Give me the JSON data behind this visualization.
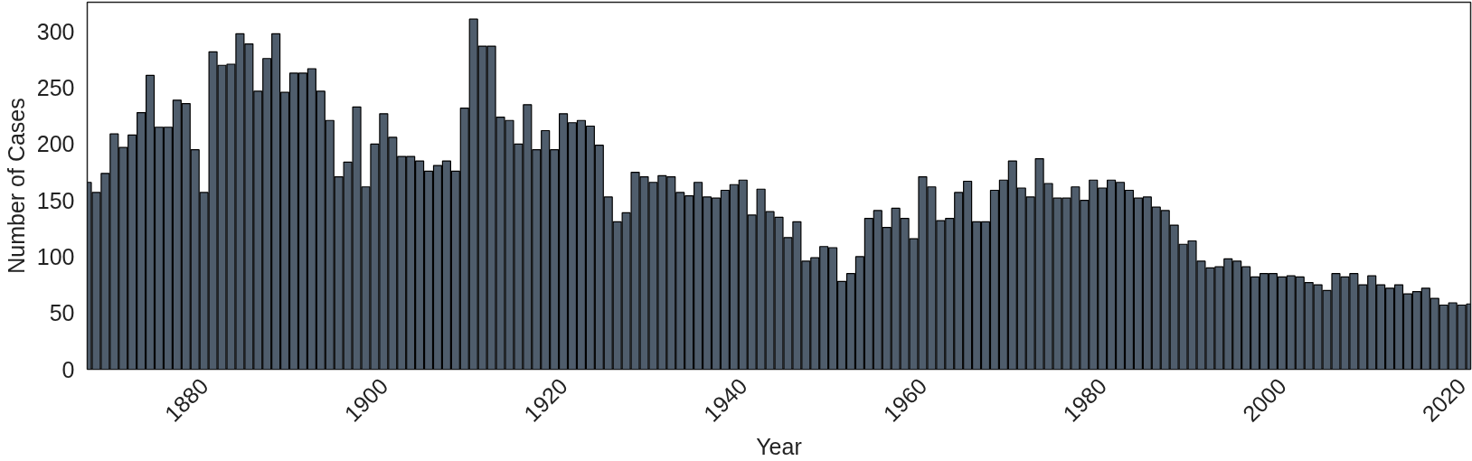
{
  "chart_data": {
    "type": "bar",
    "xlabel": "Year",
    "ylabel": "Number of Cases",
    "x": [
      1867,
      1868,
      1869,
      1870,
      1871,
      1872,
      1873,
      1874,
      1875,
      1876,
      1877,
      1878,
      1879,
      1880,
      1881,
      1882,
      1883,
      1884,
      1885,
      1886,
      1887,
      1888,
      1889,
      1890,
      1891,
      1892,
      1893,
      1894,
      1895,
      1896,
      1897,
      1898,
      1899,
      1900,
      1901,
      1902,
      1903,
      1904,
      1905,
      1906,
      1907,
      1908,
      1909,
      1910,
      1911,
      1912,
      1913,
      1914,
      1915,
      1916,
      1917,
      1918,
      1919,
      1920,
      1921,
      1922,
      1923,
      1924,
      1925,
      1926,
      1927,
      1928,
      1929,
      1930,
      1931,
      1932,
      1933,
      1934,
      1935,
      1936,
      1937,
      1938,
      1939,
      1940,
      1941,
      1942,
      1943,
      1944,
      1945,
      1946,
      1947,
      1948,
      1949,
      1950,
      1951,
      1952,
      1953,
      1954,
      1955,
      1956,
      1957,
      1958,
      1959,
      1960,
      1961,
      1962,
      1963,
      1964,
      1965,
      1966,
      1967,
      1968,
      1969,
      1970,
      1971,
      1972,
      1973,
      1974,
      1975,
      1976,
      1977,
      1978,
      1979,
      1980,
      1981,
      1982,
      1983,
      1984,
      1985,
      1986,
      1987,
      1988,
      1989,
      1990,
      1991,
      1992,
      1993,
      1994,
      1995,
      1996,
      1997,
      1998,
      1999,
      2000,
      2001,
      2002,
      2003,
      2004,
      2005,
      2006,
      2007,
      2008,
      2009,
      2010,
      2011,
      2012,
      2013,
      2014,
      2015,
      2016,
      2017,
      2018,
      2019,
      2020,
      2021
    ],
    "values": [
      166,
      157,
      174,
      209,
      197,
      208,
      228,
      261,
      215,
      215,
      239,
      236,
      195,
      157,
      282,
      270,
      271,
      298,
      289,
      247,
      276,
      298,
      246,
      263,
      263,
      267,
      247,
      221,
      171,
      184,
      233,
      162,
      200,
      227,
      206,
      189,
      189,
      185,
      176,
      181,
      185,
      176,
      232,
      311,
      287,
      287,
      224,
      221,
      200,
      235,
      195,
      212,
      195,
      227,
      219,
      221,
      216,
      199,
      153,
      131,
      139,
      175,
      171,
      166,
      172,
      171,
      157,
      154,
      166,
      153,
      152,
      159,
      164,
      168,
      137,
      160,
      140,
      135,
      117,
      131,
      96,
      99,
      109,
      108,
      78,
      85,
      100,
      134,
      141,
      126,
      143,
      134,
      116,
      171,
      162,
      132,
      134,
      157,
      167,
      131,
      131,
      159,
      168,
      185,
      161,
      153,
      187,
      165,
      152,
      152,
      162,
      150,
      168,
      161,
      168,
      166,
      159,
      152,
      153,
      144,
      141,
      128,
      111,
      114,
      96,
      90,
      91,
      98,
      96,
      91,
      82,
      85,
      85,
      82,
      83,
      82,
      77,
      75,
      70,
      85,
      82,
      85,
      75,
      83,
      75,
      72,
      75,
      67,
      69,
      72,
      63,
      57,
      59,
      57,
      58
    ],
    "color": "#4f5d6c",
    "xlim": [
      1867,
      2021
    ],
    "xticks": [
      1880,
      1900,
      1920,
      1940,
      1960,
      1980,
      2000,
      2020
    ],
    "ylim": [
      0,
      326
    ],
    "yticks": [
      0,
      50,
      100,
      150,
      200,
      250,
      300
    ],
    "grid": false
  }
}
